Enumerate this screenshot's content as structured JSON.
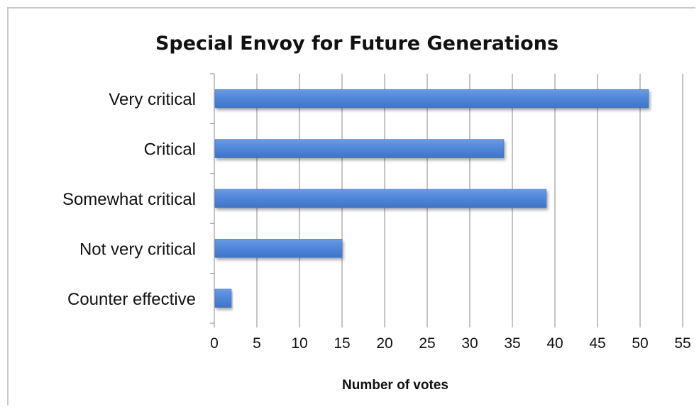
{
  "chart_data": {
    "type": "bar",
    "orientation": "horizontal",
    "title": "Special Envoy for Future Generations",
    "xlabel": "Number of votes",
    "ylabel": "",
    "categories": [
      "Very critical",
      "Critical",
      "Somewhat critical",
      "Not very critical",
      "Counter effective"
    ],
    "values": [
      51,
      34,
      39,
      15,
      2
    ],
    "xlim": [
      0,
      55
    ],
    "xticks": [
      0,
      5,
      10,
      15,
      20,
      25,
      30,
      35,
      40,
      45,
      50,
      55
    ],
    "grid": "vertical",
    "legend": "none",
    "bar_color": "#4f86d9"
  }
}
